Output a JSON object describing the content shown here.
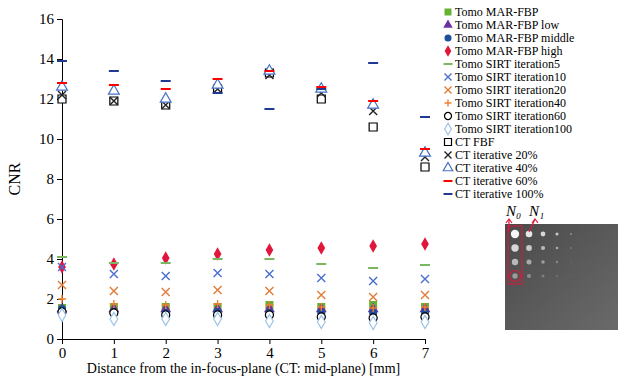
{
  "chart_data": {
    "type": "scatter",
    "x_label": "Distance from the in-focus-plane (CT: mid-plane) [mm]",
    "y_label": "CNR",
    "x": [
      0,
      1,
      2,
      3,
      4,
      5,
      6,
      7
    ],
    "xlim": [
      0,
      7
    ],
    "ylim": [
      0,
      16
    ],
    "xticks": [
      0,
      1,
      2,
      3,
      4,
      5,
      6,
      7
    ],
    "yticks": [
      0,
      2,
      4,
      6,
      8,
      10,
      12,
      14,
      16
    ],
    "grid": false,
    "legend": "right",
    "annotations": [
      "N₀",
      "N₁"
    ],
    "series": [
      {
        "name": "Tomo MAR-FBP",
        "color": "#66b032",
        "marker": "square",
        "values": [
          1.55,
          1.6,
          1.6,
          1.6,
          1.7,
          1.6,
          1.7,
          1.6
        ]
      },
      {
        "name": "Tomo MAR-FBP low",
        "color": "#7030a0",
        "marker": "triangle",
        "values": [
          1.5,
          1.5,
          1.5,
          1.5,
          1.5,
          1.5,
          1.5,
          1.5
        ]
      },
      {
        "name": "Tomo MAR-FBP middle",
        "color": "#1f4e9c",
        "marker": "circle",
        "values": [
          1.5,
          1.35,
          1.3,
          1.35,
          1.3,
          1.3,
          1.3,
          1.3
        ]
      },
      {
        "name": "Tomo MAR-FBP high",
        "color": "#e0163c",
        "marker": "diamond",
        "values": [
          3.6,
          3.75,
          4.05,
          4.25,
          4.45,
          4.55,
          4.65,
          4.75
        ]
      },
      {
        "name": "Tomo SIRT iteration5",
        "color": "#7bb661",
        "marker": "dash",
        "values": [
          4.1,
          3.8,
          3.8,
          4.0,
          4.0,
          3.75,
          3.55,
          3.7
        ]
      },
      {
        "name": "Tomo SIRT iteration10",
        "color": "#4a6fd1",
        "marker": "x",
        "values": [
          3.6,
          3.25,
          3.15,
          3.3,
          3.25,
          3.05,
          2.9,
          3.0
        ]
      },
      {
        "name": "Tomo SIRT iteration20",
        "color": "#e07b39",
        "marker": "x",
        "values": [
          2.7,
          2.4,
          2.35,
          2.45,
          2.4,
          2.2,
          2.1,
          2.2
        ]
      },
      {
        "name": "Tomo SIRT iteration40",
        "color": "#f08030",
        "marker": "plus",
        "values": [
          2.0,
          1.75,
          1.7,
          1.75,
          1.7,
          1.6,
          1.55,
          1.6
        ]
      },
      {
        "name": "Tomo SIRT iteration60",
        "color": "#000000",
        "marker": "circle-open",
        "values": [
          1.35,
          1.3,
          1.2,
          1.2,
          1.2,
          1.1,
          1.05,
          1.1
        ]
      },
      {
        "name": "Tomo SIRT iteration100",
        "color": "#9dc3e6",
        "marker": "diamond-open",
        "values": [
          1.2,
          1.0,
          1.0,
          1.0,
          0.9,
          0.85,
          0.8,
          0.85
        ]
      },
      {
        "name": "CT FBF",
        "color": "#000000",
        "marker": "square-open",
        "values": [
          12.0,
          11.9,
          11.7,
          12.5,
          13.3,
          12.0,
          10.6,
          8.6
        ]
      },
      {
        "name": "CT iterative 20%",
        "color": "#222222",
        "marker": "x",
        "values": [
          12.2,
          11.9,
          11.7,
          12.5,
          13.2,
          12.3,
          11.4,
          9.1
        ]
      },
      {
        "name": "CT iterative 40%",
        "color": "#4472c4",
        "marker": "triangle-open",
        "values": [
          12.6,
          12.4,
          12.0,
          12.7,
          13.4,
          12.5,
          11.7,
          9.3
        ]
      },
      {
        "name": "CT iterative 60%",
        "color": "#ff0000",
        "marker": "dash",
        "values": [
          12.8,
          12.7,
          12.5,
          13.0,
          13.4,
          12.6,
          11.9,
          9.5
        ]
      },
      {
        "name": "CT iterative 100%",
        "color": "#1f3a93",
        "marker": "dash",
        "values": [
          13.9,
          13.4,
          12.9,
          12.3,
          11.5,
          12.5,
          13.8,
          11.1
        ]
      }
    ]
  }
}
